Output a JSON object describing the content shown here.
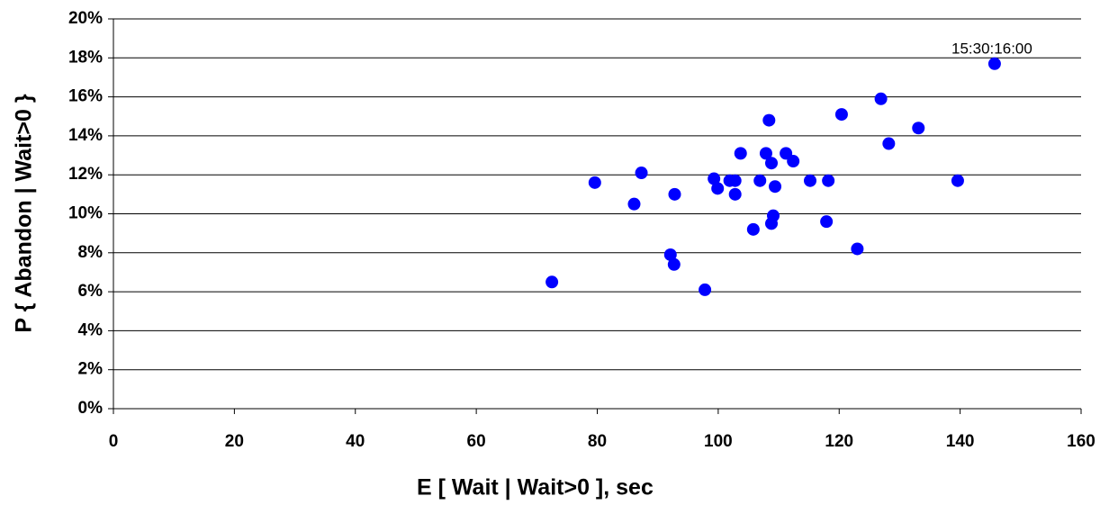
{
  "chart_data": {
    "type": "scatter",
    "x_label": "E [ Wait |  Wait>0 ], sec",
    "y_label": "P { Abandon | Wait>0 }",
    "annotation": "15:30:16:00",
    "color": "#0000ff",
    "grid": true,
    "xlim": [
      0,
      160
    ],
    "xticks": [
      0,
      20,
      40,
      60,
      80,
      100,
      120,
      140,
      160
    ],
    "ylim": [
      0,
      20
    ],
    "yticks": [
      {
        "value": 0,
        "label": "0%"
      },
      {
        "value": 2,
        "label": "2%"
      },
      {
        "value": 4,
        "label": "4%"
      },
      {
        "value": 6,
        "label": "6%"
      },
      {
        "value": 8,
        "label": "8%"
      },
      {
        "value": 10,
        "label": "10%"
      },
      {
        "value": 12,
        "label": "12%"
      },
      {
        "value": 14,
        "label": "14%"
      },
      {
        "value": 16,
        "label": "16%"
      },
      {
        "value": 18,
        "label": "18%"
      },
      {
        "value": 20,
        "label": "20%"
      }
    ],
    "x": [
      72.5,
      79.6,
      86.1,
      87.3,
      92.1,
      92.7,
      92.8,
      97.8,
      99.3,
      99.9,
      101.9,
      102.8,
      102.8,
      103.7,
      105.8,
      106.9,
      107.9,
      108.4,
      108.8,
      108.8,
      109.1,
      109.4,
      111.2,
      112.4,
      115.2,
      117.9,
      118.2,
      120.4,
      123.0,
      126.9,
      128.2,
      133.1,
      139.6,
      145.7
    ],
    "values": [
      6.5,
      11.6,
      10.5,
      12.1,
      7.9,
      7.4,
      11.0,
      6.1,
      11.8,
      11.3,
      11.7,
      11.7,
      11.0,
      13.1,
      9.2,
      11.7,
      13.1,
      14.8,
      12.6,
      9.5,
      9.9,
      11.4,
      13.1,
      12.7,
      11.7,
      9.6,
      11.7,
      15.1,
      8.2,
      15.9,
      13.6,
      14.4,
      11.7,
      17.7
    ]
  }
}
